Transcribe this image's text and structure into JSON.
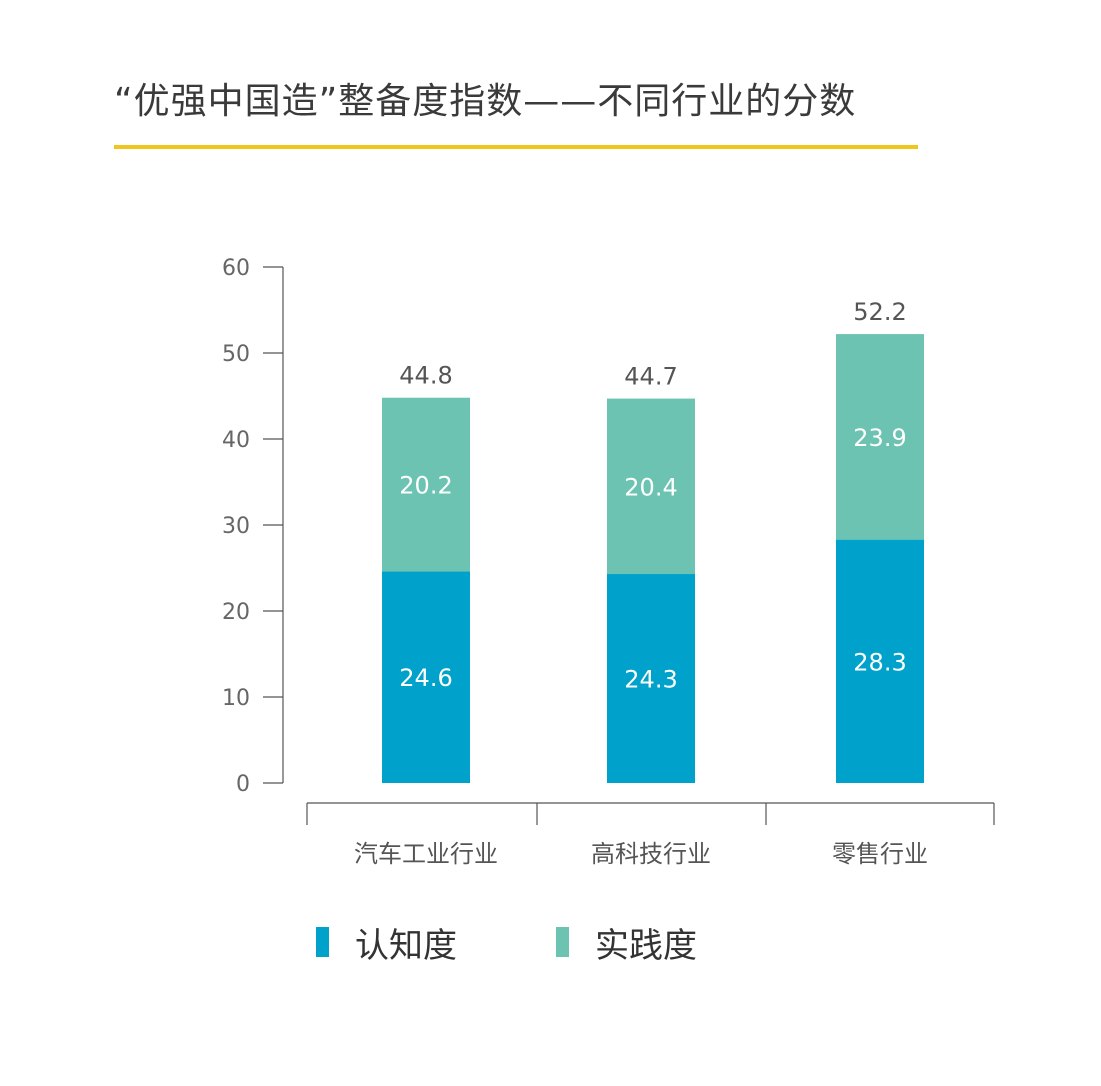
{
  "title": "“优强中国造”整备度指数——不同行业的分数",
  "colors": {
    "awareness": "#00a2cb",
    "practice": "#6cc3b1",
    "title_underline": "#f2c51c",
    "axis": "#555555",
    "tick_text": "#666666"
  },
  "chart_data": {
    "type": "bar",
    "stacked": true,
    "categories": [
      "汽车工业行业",
      "高科技行业",
      "零售行业"
    ],
    "series": [
      {
        "name": "认知度",
        "values": [
          24.6,
          24.3,
          28.3
        ]
      },
      {
        "name": "实践度",
        "values": [
          20.2,
          20.4,
          23.9
        ]
      }
    ],
    "totals": [
      44.8,
      44.7,
      52.2
    ],
    "yticks": [
      0,
      10,
      20,
      30,
      40,
      50,
      60
    ],
    "ylim": [
      0,
      60
    ],
    "title": "“优强中国造”整备度指数——不同行业的分数",
    "xlabel": "",
    "ylabel": "",
    "grid": false,
    "legend_position": "bottom"
  },
  "legend": [
    {
      "label": "认知度",
      "color_key": "awareness"
    },
    {
      "label": "实践度",
      "color_key": "practice"
    }
  ]
}
